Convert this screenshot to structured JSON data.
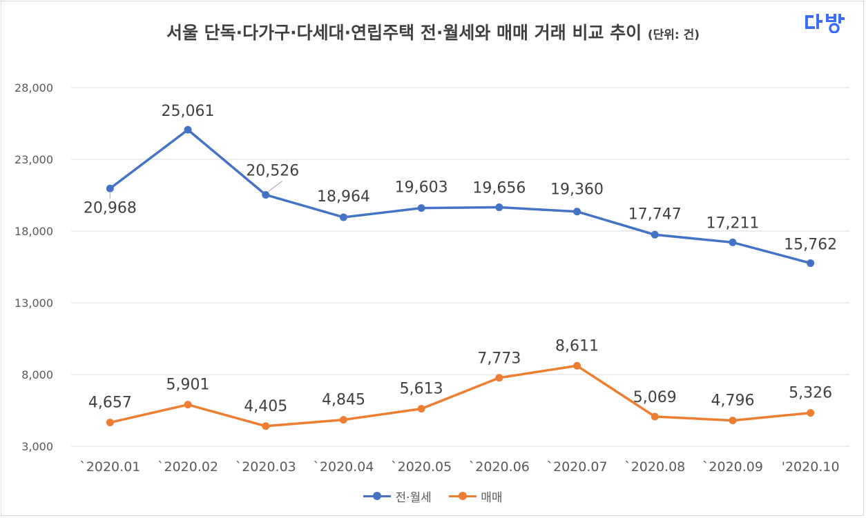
{
  "title": "서울 단독·다가구·다세대·연립주택 전·월세와 매매 거래 비교 추이",
  "title_unit": "(단위: 건)",
  "logo_text": "다방",
  "colors": {
    "series1": "#4472c4",
    "series2": "#ed7d31",
    "grid": "#d9d9d9",
    "logo": "#3d6ef7"
  },
  "chart_data": {
    "type": "line",
    "title": "서울 단독·다가구·다세대·연립주택 전·월세와 매매 거래 비교 추이",
    "ylabel": "",
    "xlabel": "",
    "ylim": [
      3000,
      28000
    ],
    "yticks": [
      3000,
      8000,
      13000,
      18000,
      23000,
      28000
    ],
    "ytick_labels": [
      "3,000",
      "8,000",
      "13,000",
      "18,000",
      "23,000",
      "28,000"
    ],
    "categories": [
      "`2020.01",
      "`2020.02",
      "`2020.03",
      "`2020.04",
      "`2020.05",
      "`2020.06",
      "`2020.07",
      "`2020.08",
      "`2020.09",
      "'2020.10"
    ],
    "series": [
      {
        "name": "전·월세",
        "values": [
          20968,
          25061,
          20526,
          18964,
          19603,
          19656,
          19360,
          17747,
          17211,
          15762
        ],
        "labels": [
          "20,968",
          "25,061",
          "20,526",
          "18,964",
          "19,603",
          "19,656",
          "19,360",
          "17,747",
          "17,211",
          "15,762"
        ]
      },
      {
        "name": "매매",
        "values": [
          4657,
          5901,
          4405,
          4845,
          5613,
          7773,
          8611,
          5069,
          4796,
          5326
        ],
        "labels": [
          "4,657",
          "5,901",
          "4,405",
          "4,845",
          "5,613",
          "7,773",
          "8,611",
          "5,069",
          "4,796",
          "5,326"
        ]
      }
    ],
    "grid": true,
    "legend": "bottom-center"
  }
}
